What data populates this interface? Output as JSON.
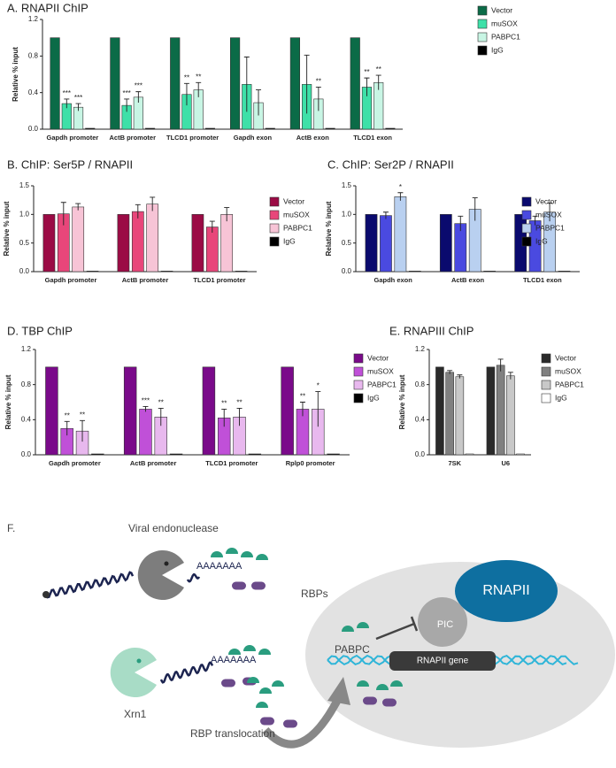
{
  "chart_data": [
    {
      "type": "bar",
      "title": "A. RNAPII ChIP",
      "ylabel": "Relative % input",
      "categories": [
        "Gapdh promoter",
        "ActB promoter",
        "TLCD1 promoter",
        "Gapdh exon",
        "ActB exon",
        "TLCD1 exon"
      ],
      "ylim": [
        0,
        1.2
      ],
      "yticks": [
        {
          "value": 0,
          "label": "0.0"
        },
        0.4,
        0.8,
        1.2
      ],
      "series": [
        {
          "name": "Vector",
          "color": "#0b6b47",
          "values": [
            1,
            1,
            1,
            1,
            1,
            1
          ]
        },
        {
          "name": "muSOX",
          "color": "#3ee0a8",
          "values": [
            0.28,
            0.26,
            0.38,
            0.49,
            0.49,
            0.46
          ],
          "errors": [
            0.05,
            0.07,
            0.12,
            0.3,
            0.32,
            0.1
          ],
          "annotations": [
            "***",
            "***",
            "**",
            null,
            null,
            "**"
          ]
        },
        {
          "name": "PABPC1",
          "color": "#c8f5e4",
          "values": [
            0.24,
            0.35,
            0.43,
            0.29,
            0.33,
            0.51
          ],
          "errors": [
            0.04,
            0.06,
            0.08,
            0.14,
            0.13,
            0.08
          ],
          "annotations": [
            "***",
            "***",
            "**",
            null,
            "**",
            "**"
          ]
        },
        {
          "name": "IgG",
          "color": "#000000",
          "values": [
            0.01,
            0.01,
            0.01,
            0.01,
            0.01,
            0.01
          ]
        }
      ]
    },
    {
      "type": "bar",
      "title": "B. ChIP: Ser5P / RNAPII",
      "ylabel": "Relative % input",
      "categories": [
        "Gapdh promoter",
        "ActB promoter",
        "TLCD1 promoter"
      ],
      "ylim": [
        0,
        1.5
      ],
      "yticks": [
        {
          "value": 0,
          "label": "0.0"
        },
        0.5,
        {
          "value": 1,
          "label": "1.0"
        },
        1.5
      ],
      "series": [
        {
          "name": "Vector",
          "color": "#9b0b45",
          "values": [
            1,
            1,
            1
          ]
        },
        {
          "name": "muSOX",
          "color": "#e8467a",
          "values": [
            1.01,
            1.05,
            0.78
          ],
          "errors": [
            0.2,
            0.12,
            0.1
          ]
        },
        {
          "name": "PABPC1",
          "color": "#f7c4d6",
          "values": [
            1.13,
            1.18,
            1.0
          ],
          "errors": [
            0.06,
            0.12,
            0.12
          ]
        },
        {
          "name": "IgG",
          "color": "#000000",
          "values": [
            0.01,
            0.01,
            0.01
          ]
        }
      ]
    },
    {
      "type": "bar",
      "title": "C. ChIP: Ser2P / RNAPII",
      "ylabel": "Relative % input",
      "categories": [
        "Gapdh exon",
        "ActB exon",
        "TLCD1 exon"
      ],
      "ylim": [
        0,
        1.5
      ],
      "yticks": [
        {
          "value": 0,
          "label": "0.0"
        },
        0.5,
        {
          "value": 1,
          "label": "1.0"
        },
        1.5
      ],
      "series": [
        {
          "name": "Vector",
          "color": "#0a0a6e",
          "values": [
            1,
            1,
            1
          ]
        },
        {
          "name": "muSOX",
          "color": "#4a4ae0",
          "values": [
            0.98,
            0.84,
            0.89
          ],
          "errors": [
            0.06,
            0.13,
            0.08
          ]
        },
        {
          "name": "PABPC1",
          "color": "#b9d0f0",
          "values": [
            1.31,
            1.09,
            1.04
          ],
          "errors": [
            0.07,
            0.2,
            0.16
          ],
          "annotations": [
            "*",
            null,
            null
          ]
        },
        {
          "name": "IgG",
          "color": "#000000",
          "values": [
            0.01,
            0.01,
            0.01
          ]
        }
      ]
    },
    {
      "type": "bar",
      "title": "D. TBP ChIP",
      "ylabel": "Relative % input",
      "categories": [
        "Gapdh promoter",
        "ActB promoter",
        "TLCD1 promoter",
        "Rplp0 promoter"
      ],
      "ylim": [
        0,
        1.2
      ],
      "yticks": [
        {
          "value": 0,
          "label": "0.0"
        },
        0.4,
        0.8,
        1.2
      ],
      "series": [
        {
          "name": "Vector",
          "color": "#7a0a8a",
          "values": [
            1,
            1,
            1,
            1
          ]
        },
        {
          "name": "muSOX",
          "color": "#c050d8",
          "values": [
            0.3,
            0.52,
            0.42,
            0.52
          ],
          "errors": [
            0.08,
            0.03,
            0.1,
            0.08
          ],
          "annotations": [
            "**",
            "***",
            "**",
            "**"
          ]
        },
        {
          "name": "PABPC1",
          "color": "#e8b8ee",
          "values": [
            0.27,
            0.43,
            0.43,
            0.52
          ],
          "errors": [
            0.12,
            0.1,
            0.1,
            0.2
          ],
          "annotations": [
            "**",
            "**",
            "**",
            "*"
          ]
        },
        {
          "name": "IgG",
          "color": "#000000",
          "values": [
            0.01,
            0.01,
            0.01,
            0.01
          ]
        }
      ]
    },
    {
      "type": "bar",
      "title": "E. RNAPIII ChIP",
      "ylabel": "Relative % input",
      "categories": [
        "7SK",
        "U6"
      ],
      "ylim": [
        0,
        1.2
      ],
      "yticks": [
        {
          "value": 0,
          "label": "0.0"
        },
        0.4,
        0.8,
        1.2
      ],
      "series": [
        {
          "name": "Vector",
          "color": "#2a2a2a",
          "values": [
            1,
            1
          ]
        },
        {
          "name": "muSOX",
          "color": "#808080",
          "values": [
            0.94,
            1.02
          ],
          "errors": [
            0.02,
            0.07
          ]
        },
        {
          "name": "PABPC1",
          "color": "#c8c8c8",
          "values": [
            0.89,
            0.9
          ],
          "errors": [
            0.02,
            0.04
          ]
        },
        {
          "name": "IgG",
          "color": "#ffffff",
          "values": [
            0.01,
            0.01
          ]
        }
      ]
    }
  ],
  "diagram": {
    "panel_label": "F.",
    "viral_endonuclease": "Viral endonuclease",
    "rbps": "RBPs",
    "polya": "AAAAAAA",
    "xrn1": "Xrn1",
    "rnapii": "RNAPII",
    "pic": "PIC",
    "pabpc": "PABPC",
    "gene": "RNAPII gene",
    "translocation": "RBP translocation"
  }
}
